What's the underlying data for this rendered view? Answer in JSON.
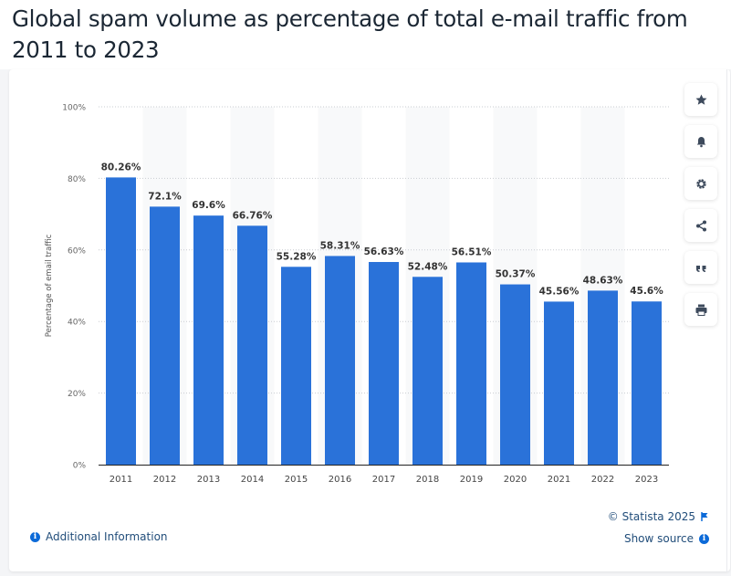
{
  "title": "Global spam volume as percentage of total e-mail traffic from 2011 to 2023",
  "toolbar": {
    "items": [
      {
        "name": "favorite",
        "icon": "star-icon"
      },
      {
        "name": "notification",
        "icon": "bell-icon"
      },
      {
        "name": "settings",
        "icon": "gear-icon"
      },
      {
        "name": "share",
        "icon": "share-icon"
      },
      {
        "name": "cite",
        "icon": "quote-icon"
      },
      {
        "name": "print",
        "icon": "printer-icon"
      }
    ]
  },
  "footer": {
    "additional_info": "Additional Information",
    "copyright": "© Statista 2025",
    "show_source": "Show source"
  },
  "colors": {
    "bar": "#2a72d9",
    "accent": "#0c6ad8",
    "title": "#1b2734"
  },
  "chart_data": {
    "type": "bar",
    "title": "Global spam volume as percentage of total e-mail traffic from 2011 to 2023",
    "xlabel": "",
    "ylabel": "Percentage of email traffic",
    "categories": [
      "2011",
      "2012",
      "2013",
      "2014",
      "2015",
      "2016",
      "2017",
      "2018",
      "2019",
      "2020",
      "2021",
      "2022",
      "2023"
    ],
    "values": [
      80.26,
      72.1,
      69.6,
      66.76,
      55.28,
      58.31,
      56.63,
      52.48,
      56.51,
      50.37,
      45.56,
      48.63,
      45.6
    ],
    "data_labels": [
      "80.26%",
      "72.1%",
      "69.6%",
      "66.76%",
      "55.28%",
      "58.31%",
      "56.63%",
      "52.48%",
      "56.51%",
      "50.37%",
      "45.56%",
      "48.63%",
      "45.6%"
    ],
    "ylim": [
      0,
      100
    ],
    "yticks": [
      0,
      20,
      40,
      60,
      80,
      100
    ],
    "ytick_labels": [
      "0%",
      "20%",
      "40%",
      "60%",
      "80%",
      "100%"
    ],
    "grid": true,
    "legend": "none"
  }
}
